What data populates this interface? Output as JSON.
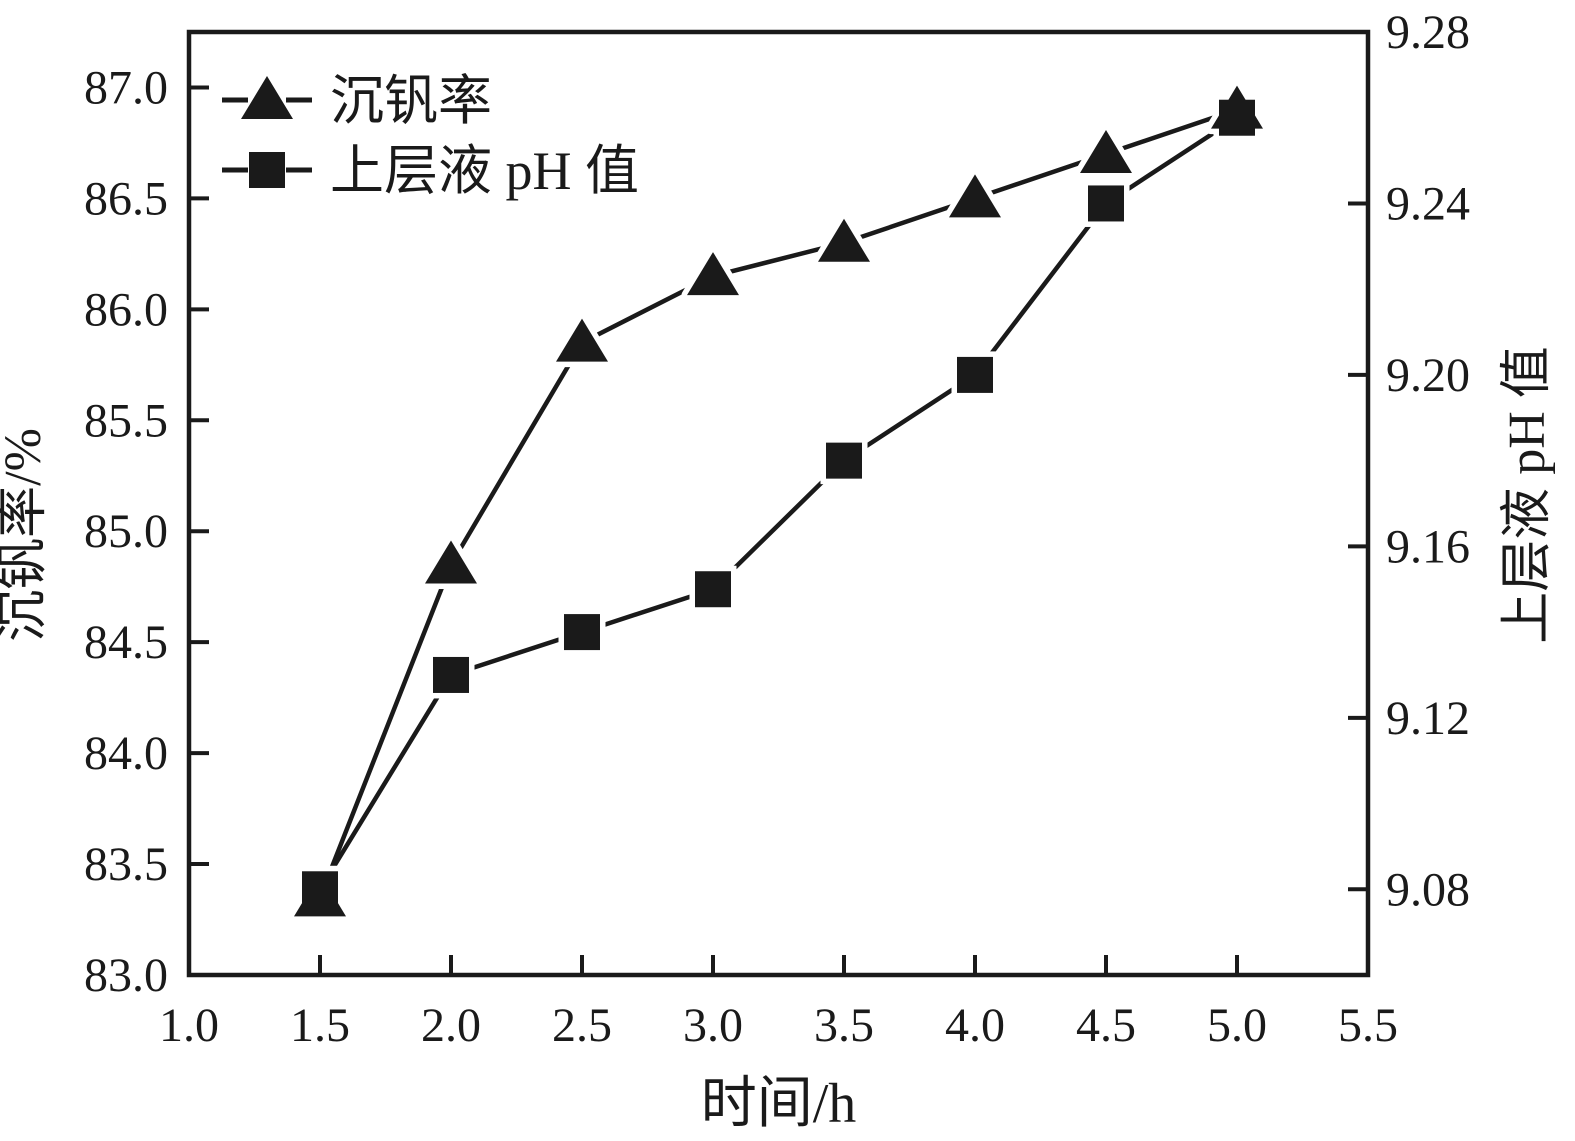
{
  "figure": {
    "background": "#ffffff",
    "ink_color": "#1a1a1a"
  },
  "chart_data": {
    "type": "line",
    "title": "",
    "xlabel": "时间/h",
    "ylabel_left": "沉钒率/%",
    "ylabel_right": "上层液 pH 值",
    "xlim": [
      1.0,
      5.5
    ],
    "ylim_left": [
      83.0,
      87.25
    ],
    "ylim_right": [
      9.06,
      9.28
    ],
    "grid": false,
    "legend_position": "top-left-inside",
    "x_tick_labels": [
      "1.0",
      "1.5",
      "2.0",
      "2.5",
      "3.0",
      "3.5",
      "4.0",
      "4.5",
      "5.0",
      "5.5"
    ],
    "y_left_tick_labels": [
      "83.0",
      "83.5",
      "84.0",
      "84.5",
      "85.0",
      "85.5",
      "86.0",
      "86.5",
      "87.0"
    ],
    "y_right_tick_labels": [
      "9.08",
      "9.12",
      "9.16",
      "9.20",
      "9.24",
      "9.28"
    ],
    "x": [
      1.5,
      2.0,
      2.5,
      3.0,
      3.5,
      4.0,
      4.5,
      5.0
    ],
    "series": [
      {
        "name": "沉钒率",
        "axis": "left",
        "marker": "triangle",
        "color": "#1a1a1a",
        "values": [
          83.35,
          84.85,
          85.85,
          86.15,
          86.3,
          86.5,
          86.7,
          86.9
        ]
      },
      {
        "name": "上层液 pH 值",
        "axis": "right",
        "marker": "square",
        "color": "#1a1a1a",
        "values": [
          9.08,
          9.13,
          9.14,
          9.15,
          9.18,
          9.2,
          9.24,
          9.26
        ]
      }
    ]
  }
}
